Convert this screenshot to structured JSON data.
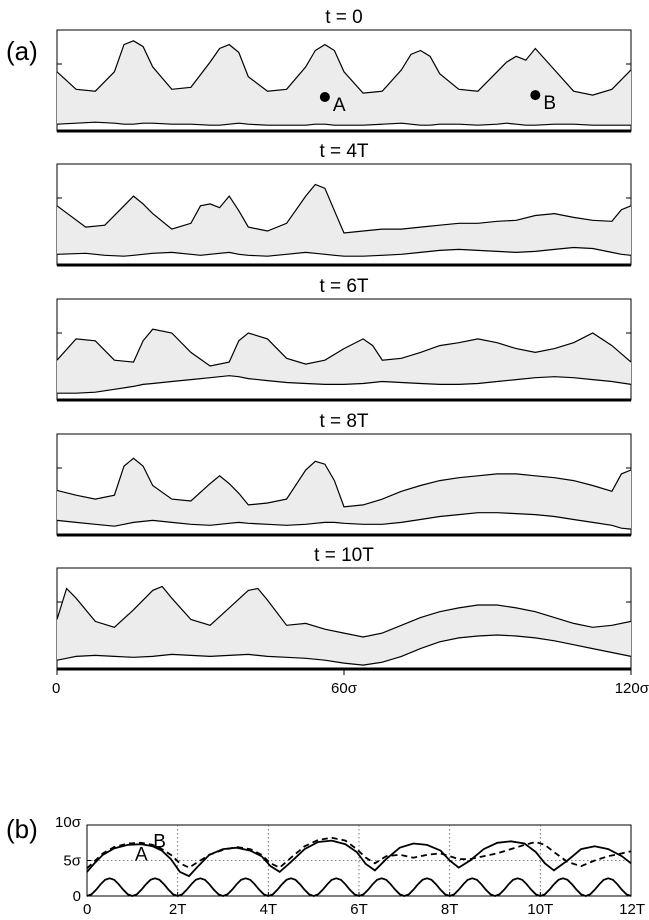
{
  "chart_data": [
    {
      "type": "area",
      "panel_label": "(a)",
      "x_ticks": [
        "0",
        "60σ",
        "120σ"
      ],
      "xlim": [
        0,
        120
      ],
      "panels": [
        {
          "title": "t = 0",
          "points": [
            {
              "label": "A",
              "x": 56,
              "y": 0.34
            },
            {
              "label": "B",
              "x": 100,
              "y": 0.36
            }
          ],
          "x": [
            0,
            4,
            8,
            12,
            14,
            16,
            18,
            20,
            24,
            28,
            32,
            34,
            36,
            38,
            40,
            44,
            48,
            52,
            54,
            56,
            58,
            60,
            64,
            68,
            72,
            74,
            76,
            78,
            80,
            84,
            88,
            92,
            94,
            96,
            98,
            100,
            104,
            108,
            112,
            116,
            120
          ],
          "upper": [
            0.6,
            0.42,
            0.4,
            0.6,
            0.88,
            0.92,
            0.86,
            0.65,
            0.42,
            0.44,
            0.7,
            0.84,
            0.88,
            0.8,
            0.55,
            0.4,
            0.42,
            0.65,
            0.82,
            0.88,
            0.82,
            0.6,
            0.38,
            0.4,
            0.62,
            0.78,
            0.82,
            0.76,
            0.58,
            0.42,
            0.4,
            0.6,
            0.7,
            0.76,
            0.72,
            0.84,
            0.62,
            0.4,
            0.36,
            0.42,
            0.62
          ],
          "lower": [
            0.06,
            0.07,
            0.08,
            0.07,
            0.06,
            0.06,
            0.07,
            0.07,
            0.06,
            0.06,
            0.05,
            0.05,
            0.06,
            0.07,
            0.06,
            0.05,
            0.05,
            0.05,
            0.06,
            0.06,
            0.05,
            0.05,
            0.05,
            0.06,
            0.07,
            0.06,
            0.05,
            0.05,
            0.06,
            0.06,
            0.05,
            0.06,
            0.07,
            0.06,
            0.05,
            0.05,
            0.06,
            0.06,
            0.05,
            0.05,
            0.05
          ]
        },
        {
          "title": "t = 4T",
          "points": [],
          "x": [
            0,
            6,
            10,
            14,
            16,
            18,
            20,
            24,
            28,
            30,
            32,
            34,
            36,
            38,
            40,
            44,
            48,
            52,
            54,
            56,
            58,
            60,
            64,
            68,
            72,
            76,
            80,
            84,
            88,
            92,
            96,
            100,
            104,
            108,
            112,
            116,
            118,
            120
          ],
          "upper": [
            0.6,
            0.38,
            0.4,
            0.6,
            0.7,
            0.62,
            0.52,
            0.36,
            0.42,
            0.6,
            0.62,
            0.58,
            0.7,
            0.55,
            0.38,
            0.34,
            0.42,
            0.7,
            0.82,
            0.78,
            0.55,
            0.32,
            0.34,
            0.36,
            0.36,
            0.38,
            0.4,
            0.42,
            0.42,
            0.44,
            0.45,
            0.5,
            0.52,
            0.48,
            0.45,
            0.44,
            0.56,
            0.6
          ],
          "lower": [
            0.1,
            0.11,
            0.09,
            0.08,
            0.09,
            0.1,
            0.11,
            0.12,
            0.1,
            0.09,
            0.1,
            0.11,
            0.12,
            0.1,
            0.09,
            0.08,
            0.1,
            0.12,
            0.11,
            0.1,
            0.09,
            0.08,
            0.08,
            0.09,
            0.1,
            0.12,
            0.14,
            0.15,
            0.14,
            0.13,
            0.12,
            0.13,
            0.15,
            0.17,
            0.16,
            0.12,
            0.1,
            0.09
          ]
        },
        {
          "title": "t = 6T",
          "points": [],
          "x": [
            0,
            4,
            8,
            12,
            16,
            18,
            20,
            24,
            28,
            32,
            36,
            38,
            40,
            44,
            48,
            52,
            56,
            60,
            64,
            66,
            68,
            72,
            76,
            80,
            84,
            88,
            92,
            96,
            100,
            104,
            108,
            112,
            116,
            120
          ],
          "upper": [
            0.4,
            0.62,
            0.6,
            0.4,
            0.38,
            0.6,
            0.72,
            0.68,
            0.48,
            0.34,
            0.38,
            0.6,
            0.68,
            0.62,
            0.42,
            0.36,
            0.4,
            0.52,
            0.62,
            0.55,
            0.4,
            0.42,
            0.48,
            0.55,
            0.58,
            0.62,
            0.58,
            0.52,
            0.48,
            0.52,
            0.58,
            0.68,
            0.55,
            0.38
          ],
          "lower": [
            0.06,
            0.06,
            0.07,
            0.1,
            0.13,
            0.15,
            0.16,
            0.18,
            0.2,
            0.22,
            0.24,
            0.23,
            0.21,
            0.19,
            0.17,
            0.16,
            0.15,
            0.15,
            0.16,
            0.17,
            0.18,
            0.17,
            0.16,
            0.15,
            0.15,
            0.16,
            0.18,
            0.2,
            0.22,
            0.23,
            0.22,
            0.2,
            0.18,
            0.15
          ]
        },
        {
          "title": "t = 8T",
          "points": [],
          "x": [
            0,
            4,
            8,
            12,
            14,
            16,
            18,
            20,
            24,
            28,
            32,
            34,
            36,
            38,
            40,
            44,
            48,
            52,
            54,
            56,
            58,
            60,
            64,
            68,
            72,
            76,
            80,
            84,
            88,
            92,
            96,
            100,
            104,
            108,
            112,
            116,
            118,
            120
          ],
          "upper": [
            0.45,
            0.4,
            0.36,
            0.4,
            0.7,
            0.78,
            0.7,
            0.5,
            0.36,
            0.34,
            0.52,
            0.6,
            0.52,
            0.42,
            0.3,
            0.32,
            0.36,
            0.66,
            0.75,
            0.72,
            0.55,
            0.28,
            0.3,
            0.36,
            0.44,
            0.5,
            0.55,
            0.58,
            0.6,
            0.62,
            0.62,
            0.6,
            0.58,
            0.55,
            0.5,
            0.44,
            0.62,
            0.66
          ],
          "lower": [
            0.14,
            0.12,
            0.1,
            0.08,
            0.1,
            0.12,
            0.13,
            0.14,
            0.12,
            0.1,
            0.09,
            0.1,
            0.11,
            0.12,
            0.11,
            0.1,
            0.09,
            0.1,
            0.11,
            0.12,
            0.12,
            0.11,
            0.1,
            0.1,
            0.12,
            0.15,
            0.18,
            0.2,
            0.22,
            0.22,
            0.21,
            0.2,
            0.18,
            0.15,
            0.12,
            0.09,
            0.06,
            0.05
          ]
        },
        {
          "title": "t = 10T",
          "points": [],
          "x": [
            0,
            2,
            4,
            8,
            12,
            16,
            20,
            22,
            24,
            28,
            32,
            36,
            40,
            42,
            44,
            48,
            52,
            56,
            60,
            64,
            68,
            72,
            76,
            80,
            84,
            88,
            92,
            96,
            100,
            104,
            108,
            112,
            116,
            120
          ],
          "upper": [
            0.5,
            0.82,
            0.72,
            0.48,
            0.42,
            0.6,
            0.8,
            0.84,
            0.72,
            0.5,
            0.44,
            0.62,
            0.8,
            0.82,
            0.7,
            0.44,
            0.46,
            0.4,
            0.36,
            0.32,
            0.36,
            0.44,
            0.52,
            0.58,
            0.62,
            0.65,
            0.65,
            0.62,
            0.58,
            0.52,
            0.46,
            0.42,
            0.44,
            0.48
          ],
          "lower": [
            0.08,
            0.1,
            0.12,
            0.13,
            0.12,
            0.11,
            0.12,
            0.13,
            0.14,
            0.13,
            0.12,
            0.13,
            0.14,
            0.13,
            0.12,
            0.11,
            0.1,
            0.08,
            0.05,
            0.03,
            0.06,
            0.12,
            0.2,
            0.27,
            0.31,
            0.33,
            0.34,
            0.33,
            0.31,
            0.28,
            0.24,
            0.2,
            0.16,
            0.12
          ]
        }
      ]
    },
    {
      "type": "line",
      "panel_label": "(b)",
      "x_ticks": [
        "0",
        "2T",
        "4T",
        "6T",
        "8T",
        "10T",
        "12T"
      ],
      "y_ticks": [
        "0",
        "5σ",
        "10σ"
      ],
      "xlim": [
        0,
        12
      ],
      "ylim": [
        0,
        10
      ],
      "grid": true,
      "series": [
        {
          "name": "A",
          "style": "solid",
          "x": [
            0,
            0.15,
            0.35,
            0.6,
            0.9,
            1.2,
            1.45,
            1.65,
            1.85,
            2.05,
            2.25,
            2.45,
            2.7,
            3.0,
            3.3,
            3.6,
            3.85,
            4.05,
            4.25,
            4.5,
            4.8,
            5.1,
            5.4,
            5.7,
            5.95,
            6.15,
            6.35,
            6.6,
            6.9,
            7.2,
            7.5,
            7.8,
            8.0,
            8.2,
            8.45,
            8.75,
            9.05,
            9.35,
            9.65,
            9.9,
            10.1,
            10.3,
            10.6,
            10.9,
            11.2,
            11.5,
            11.8,
            12.0
          ],
          "values": [
            3.4,
            4.5,
            5.8,
            6.7,
            7.2,
            7.3,
            7.0,
            6.4,
            5.2,
            3.4,
            2.8,
            4.2,
            5.8,
            6.6,
            6.8,
            6.4,
            5.6,
            4.2,
            3.4,
            4.8,
            6.6,
            7.6,
            7.8,
            7.3,
            6.2,
            4.5,
            3.6,
            5.2,
            6.8,
            7.4,
            7.2,
            6.4,
            5.0,
            4.0,
            5.0,
            6.6,
            7.5,
            7.7,
            7.4,
            6.2,
            4.6,
            3.6,
            5.0,
            6.6,
            7.0,
            6.6,
            5.6,
            4.6
          ]
        },
        {
          "name": "B",
          "style": "dashed",
          "x": [
            0,
            0.15,
            0.35,
            0.6,
            0.9,
            1.2,
            1.45,
            1.65,
            1.85,
            2.05,
            2.25,
            2.45,
            2.7,
            3.0,
            3.3,
            3.6,
            3.85,
            4.05,
            4.25,
            4.5,
            4.8,
            5.1,
            5.4,
            5.7,
            5.95,
            6.15,
            6.35,
            6.6,
            6.9,
            7.2,
            7.5,
            7.8,
            8.0,
            8.2,
            8.45,
            8.75,
            9.05,
            9.35,
            9.65,
            9.9,
            10.1,
            10.3,
            10.6,
            10.9,
            11.2,
            11.5,
            11.8,
            12.0
          ],
          "values": [
            3.9,
            4.8,
            6.0,
            6.9,
            7.4,
            7.5,
            7.2,
            6.6,
            5.8,
            4.6,
            4.0,
            4.8,
            5.8,
            6.5,
            6.9,
            6.6,
            5.8,
            4.6,
            4.0,
            5.4,
            7.0,
            7.9,
            8.2,
            7.8,
            6.6,
            5.4,
            4.6,
            5.6,
            5.8,
            5.4,
            5.8,
            6.0,
            5.6,
            5.2,
            5.2,
            5.6,
            6.0,
            6.6,
            7.2,
            7.6,
            7.2,
            6.2,
            4.8,
            4.2,
            5.0,
            5.6,
            6.0,
            6.3
          ]
        },
        {
          "name": "",
          "style": "solid",
          "x": [
            0,
            0.1,
            0.2,
            0.3,
            0.4,
            0.5,
            0.6,
            0.7,
            0.8,
            0.9,
            1.0
          ],
          "values": [
            0.0,
            0.24,
            0.87,
            1.65,
            2.28,
            2.5,
            2.28,
            1.65,
            0.87,
            0.24,
            0.0
          ],
          "periodic": true,
          "period": 1
        }
      ],
      "annotations": [
        {
          "text": "A",
          "x": 1.2,
          "y": 5.0
        },
        {
          "text": "B",
          "x": 1.6,
          "y": 6.8
        }
      ]
    }
  ]
}
